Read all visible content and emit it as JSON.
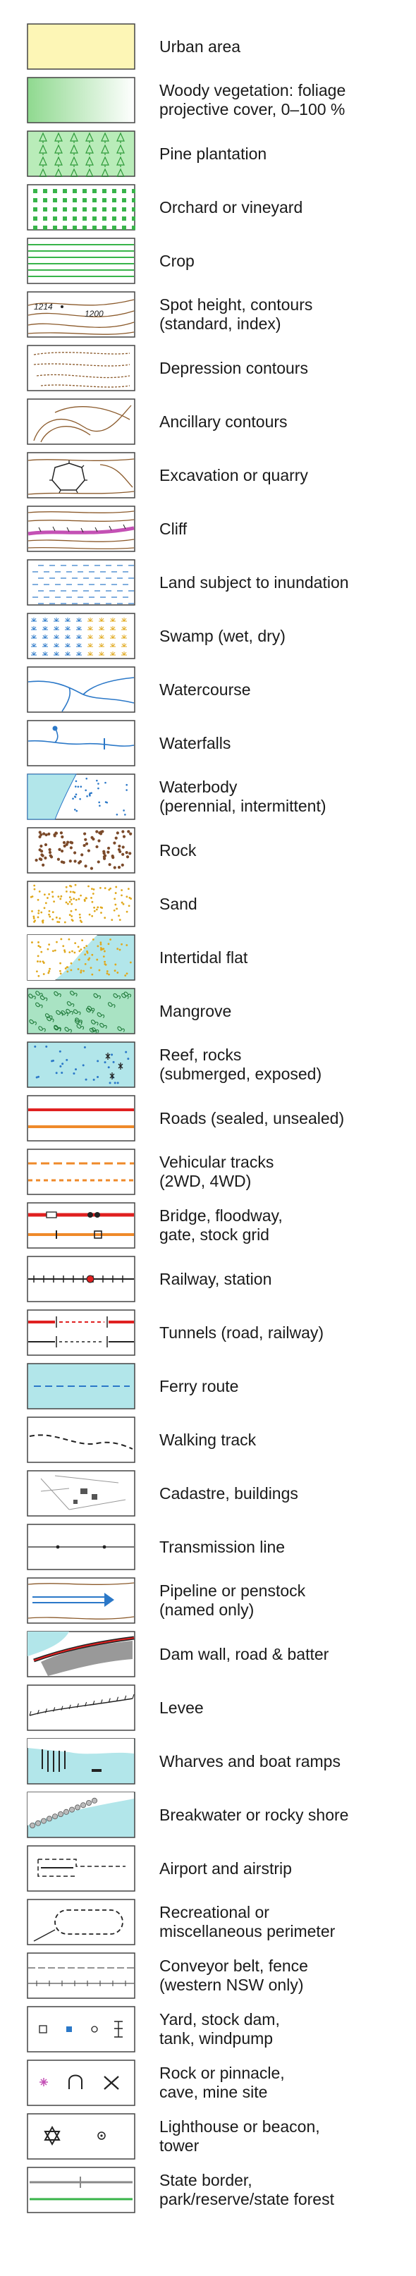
{
  "legend": [
    {
      "key": "urban-area",
      "lines": [
        "Urban area"
      ]
    },
    {
      "key": "woody-vegetation",
      "lines": [
        "Woody vegetation: foliage",
        "projective cover, 0–100 %"
      ]
    },
    {
      "key": "pine-plantation",
      "lines": [
        "Pine plantation"
      ]
    },
    {
      "key": "orchard-vineyard",
      "lines": [
        "Orchard or vineyard"
      ]
    },
    {
      "key": "crop",
      "lines": [
        "Crop"
      ]
    },
    {
      "key": "spot-height-contours",
      "lines": [
        "Spot height, contours",
        "(standard, index)"
      ],
      "marks": {
        "spot_height": "1214",
        "contour_index": "1200"
      }
    },
    {
      "key": "depression-contours",
      "lines": [
        "Depression contours"
      ]
    },
    {
      "key": "ancillary-contours",
      "lines": [
        "Ancillary contours"
      ]
    },
    {
      "key": "excavation-quarry",
      "lines": [
        "Excavation or quarry"
      ]
    },
    {
      "key": "cliff",
      "lines": [
        "Cliff"
      ]
    },
    {
      "key": "land-subject-to-inundation",
      "lines": [
        "Land subject to inundation"
      ]
    },
    {
      "key": "swamp",
      "lines": [
        "Swamp (wet, dry)"
      ]
    },
    {
      "key": "watercourse",
      "lines": [
        "Watercourse"
      ]
    },
    {
      "key": "waterfalls",
      "lines": [
        "Waterfalls"
      ]
    },
    {
      "key": "waterbody",
      "lines": [
        "Waterbody",
        "(perennial, intermittent)"
      ]
    },
    {
      "key": "rock",
      "lines": [
        "Rock"
      ]
    },
    {
      "key": "sand",
      "lines": [
        "Sand"
      ]
    },
    {
      "key": "intertidal-flat",
      "lines": [
        "Intertidal flat"
      ]
    },
    {
      "key": "mangrove",
      "lines": [
        "Mangrove"
      ]
    },
    {
      "key": "reef-rocks",
      "lines": [
        "Reef, rocks",
        "(submerged, exposed)"
      ]
    },
    {
      "key": "roads",
      "lines": [
        "Roads (sealed, unsealed)"
      ]
    },
    {
      "key": "vehicular-tracks",
      "lines": [
        "Vehicular tracks",
        "(2WD, 4WD)"
      ]
    },
    {
      "key": "bridge-floodway",
      "lines": [
        "Bridge, floodway,",
        "gate, stock grid"
      ]
    },
    {
      "key": "railway-station",
      "lines": [
        "Railway, station"
      ]
    },
    {
      "key": "tunnels",
      "lines": [
        "Tunnels (road, railway)"
      ]
    },
    {
      "key": "ferry-route",
      "lines": [
        "Ferry route"
      ]
    },
    {
      "key": "walking-track",
      "lines": [
        "Walking track"
      ]
    },
    {
      "key": "cadastre-buildings",
      "lines": [
        "Cadastre, buildings"
      ]
    },
    {
      "key": "transmission-line",
      "lines": [
        "Transmission line"
      ]
    },
    {
      "key": "pipeline-penstock",
      "lines": [
        "Pipeline or penstock",
        "(named only)"
      ]
    },
    {
      "key": "dam-wall",
      "lines": [
        "Dam wall, road & batter"
      ]
    },
    {
      "key": "levee",
      "lines": [
        "Levee"
      ]
    },
    {
      "key": "wharves-boat-ramps",
      "lines": [
        "Wharves and boat ramps"
      ]
    },
    {
      "key": "breakwater",
      "lines": [
        "Breakwater or rocky shore"
      ]
    },
    {
      "key": "airport-airstrip",
      "lines": [
        "Airport and airstrip"
      ]
    },
    {
      "key": "recreational-perimeter",
      "lines": [
        "Recreational or",
        "miscellaneous perimeter"
      ]
    },
    {
      "key": "conveyor-fence",
      "lines": [
        "Conveyor belt, fence",
        "(western NSW only)"
      ]
    },
    {
      "key": "yard-stock-dam",
      "lines": [
        "Yard, stock dam,",
        "tank, windpump"
      ]
    },
    {
      "key": "rock-pinnacle-cave",
      "lines": [
        "Rock or pinnacle,",
        "cave, mine site"
      ]
    },
    {
      "key": "lighthouse-beacon",
      "lines": [
        "Lighthouse or beacon,",
        "tower"
      ]
    },
    {
      "key": "state-border",
      "lines": [
        "State border,",
        "park/reserve/state forest"
      ]
    }
  ],
  "colors": {
    "urban": "#fdf6b6",
    "vegetation": "#8fd98f",
    "vegetation_dark": "#2f9a3a",
    "orchard": "#38b44a",
    "contour": "#8b5a2b",
    "water": "#b2e6ea",
    "water_line": "#2b78c8",
    "cliff": "#c451b5",
    "road_sealed": "#e02020",
    "road_unsealed": "#ef8a2a",
    "sand": "#e0a81c",
    "mangrove": "#a9e3c3",
    "rock": "#7b4a2a",
    "border": "#2b2b2b"
  }
}
